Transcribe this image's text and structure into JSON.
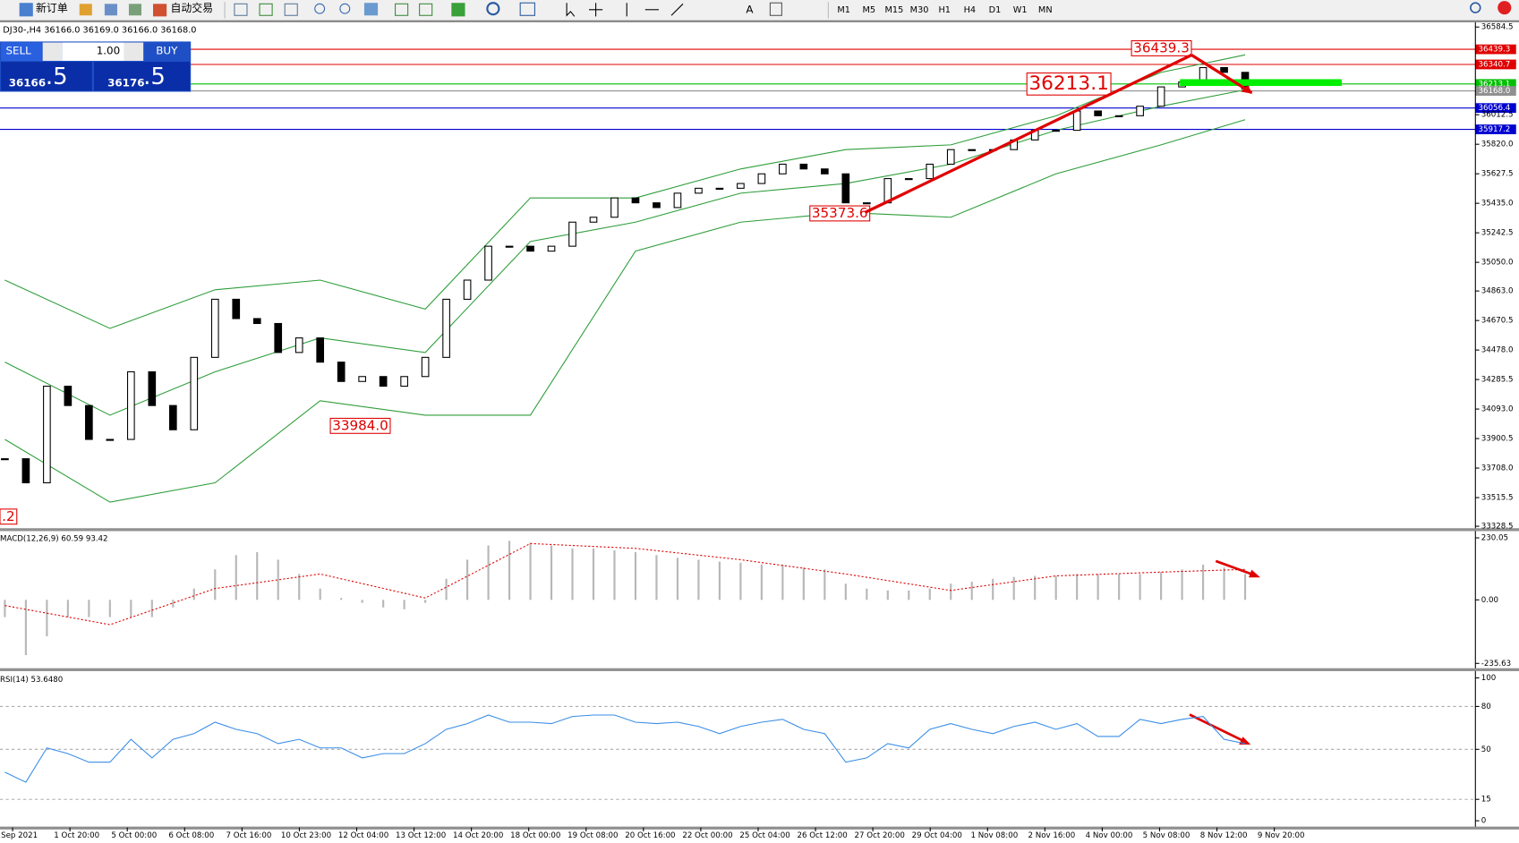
{
  "toolbar": {
    "new_order": "新订单",
    "auto_trading": "自动交易",
    "timeframes": [
      "M1",
      "M5",
      "M15",
      "M30",
      "H1",
      "H4",
      "D1",
      "W1",
      "MN"
    ]
  },
  "header": "DJ30-,H4  36166.0 36169.0 36166.0 36168.0",
  "trade_panel": {
    "sell": "SELL",
    "buy": "BUY",
    "lot": "1.00",
    "sell_big": "36166",
    "sell_pip": ".5",
    "buy_big": "36176",
    "buy_pip": ".5"
  },
  "time_labels": [
    "Sep 2021",
    "1 Oct 20:00",
    "5 Oct 00:00",
    "6 Oct 08:00",
    "7 Oct 16:00",
    "10 Oct 23:00",
    "12 Oct 04:00",
    "13 Oct 12:00",
    "14 Oct 20:00",
    "18 Oct 00:00",
    "19 Oct 08:00",
    "20 Oct 16:00",
    "22 Oct 00:00",
    "25 Oct 04:00",
    "26 Oct 12:00",
    "27 Oct 20:00",
    "29 Oct 04:00",
    "1 Nov 08:00",
    "2 Nov 16:00",
    "4 Nov 00:00",
    "5 Nov 08:00",
    "8 Nov 12:00",
    "9 Nov 20:00"
  ],
  "chart_data": [
    {
      "type": "candlestick",
      "values": [
        33769,
        33612,
        34242,
        34116,
        33895,
        33895,
        34336,
        34116,
        33958,
        34430,
        34809,
        34683,
        34651,
        34462,
        34557,
        34399,
        34273,
        34305,
        34242,
        34305,
        34430,
        34809,
        34934,
        35155,
        35155,
        35123,
        35155,
        35312,
        35344,
        35470,
        35438,
        35407,
        35501,
        35533,
        35533,
        35564,
        35627,
        35690,
        35659,
        35627,
        35438,
        35438,
        35596,
        35596,
        35690,
        35785,
        35785,
        35785,
        35848,
        35911,
        35911,
        36037,
        36006,
        36006,
        36068,
        36194,
        36226,
        36320,
        36289,
        36182
      ],
      "bands": {
        "color": "#2e9e3a",
        "x": [
          0,
          5,
          10,
          15,
          20,
          25,
          30,
          35,
          40,
          45,
          50,
          55,
          59
        ],
        "upper": [
          34934,
          34619,
          34871,
          34934,
          34745,
          35470,
          35470,
          35659,
          35785,
          35816,
          36005,
          36289,
          36403
        ],
        "middle": [
          34399,
          34053,
          34336,
          34557,
          34462,
          35186,
          35312,
          35501,
          35564,
          35690,
          35911,
          36068,
          36175
        ],
        "lower": [
          33895,
          33486,
          33612,
          34147,
          34053,
          34053,
          35123,
          35312,
          35375,
          35344,
          35627,
          35816,
          35980
        ]
      },
      "ylim": [
        33328.5,
        36584.5
      ],
      "yticks": [
        36584.5,
        36012.5,
        {
          "value": 35820,
          "label": "35820.0"
        },
        35627.5,
        {
          "value": 35435,
          "label": "35435.0"
        },
        35242.5,
        {
          "value": 35050,
          "label": "35050.0"
        },
        {
          "value": 34863,
          "label": "34863.0"
        },
        34670.5,
        {
          "value": 34478,
          "label": "34478.0"
        },
        34285.5,
        {
          "value": 34093,
          "label": "34093.0"
        },
        33900.5,
        {
          "value": 33708,
          "label": "33708.0"
        },
        33515.5,
        33328.5
      ],
      "levels": [
        {
          "value": 36439.3,
          "color": "#e00000"
        },
        {
          "value": 36340.7,
          "color": "#e00000"
        },
        {
          "value": 36213.1,
          "color": "#00c000"
        },
        {
          "value": 36168.0,
          "label": "36168.0",
          "color": "#909090"
        },
        {
          "value": 36056.4,
          "color": "#0000d0"
        },
        {
          "value": 35917.2,
          "color": "#0000d0"
        }
      ],
      "annotations": [
        "36439.3",
        "36213.1",
        "35373.6",
        "33984.0",
        ".2"
      ]
    },
    {
      "type": "macd",
      "title": "MACD(12,26,9) 60.59 93.42",
      "histogram": {
        "color": "#b8b8b8",
        "values": [
          -64,
          -205,
          -135,
          -64,
          -64,
          -64,
          -64,
          -64,
          -28,
          42,
          113,
          166,
          177,
          149,
          96,
          42,
          7,
          -11,
          -28,
          -35,
          -11,
          78,
          149,
          202,
          219,
          212,
          202,
          191,
          191,
          184,
          177,
          166,
          156,
          149,
          142,
          138,
          131,
          131,
          120,
          113,
          60,
          42,
          35,
          35,
          42,
          60,
          67,
          78,
          85,
          89,
          89,
          96,
          96,
          96,
          96,
          103,
          113,
          131,
          120,
          96
        ]
      },
      "signal": {
        "color": "#e00000",
        "x": [
          0,
          5,
          10,
          15,
          20,
          25,
          30,
          35,
          40,
          45,
          50,
          55,
          59
        ],
        "values": [
          -21,
          -92,
          42,
          96,
          7,
          209,
          191,
          149,
          96,
          35,
          89,
          103,
          113
        ]
      },
      "ylim": [
        -235.63,
        230.05
      ],
      "yticks": [
        230.05,
        {
          "value": 0,
          "label": "0.00"
        },
        -235.63
      ]
    },
    {
      "type": "line",
      "title": "RSI(14) 53.6480",
      "color": "#3a8ee6",
      "values": [
        34,
        27,
        51,
        47,
        41,
        41,
        57,
        44,
        57,
        61,
        69,
        64,
        61,
        54,
        57,
        51,
        51,
        44,
        47,
        47,
        54,
        64,
        68,
        74,
        69,
        69,
        68,
        73,
        74,
        74,
        69,
        68,
        69,
        66,
        61,
        66,
        69,
        71,
        64,
        61,
        41,
        44,
        54,
        51,
        64,
        68,
        64,
        61,
        66,
        69,
        64,
        68,
        59,
        59,
        71,
        68,
        71,
        73,
        57,
        54
      ],
      "ylim": [
        0,
        100
      ],
      "yticks": [
        100,
        80,
        50,
        15,
        0
      ]
    }
  ]
}
